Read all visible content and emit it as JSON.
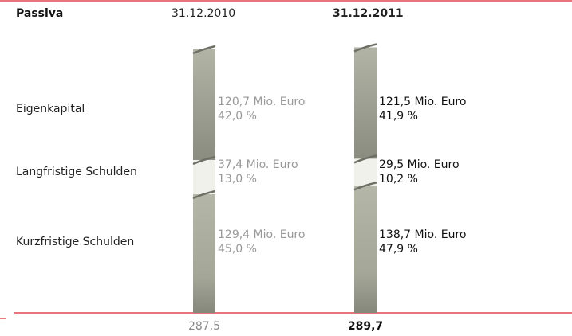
{
  "chart_data": {
    "type": "stacked_bar",
    "title": "Passiva",
    "categories": [
      "31.12.2010",
      "31.12.2011"
    ],
    "series": [
      {
        "name": "Eigenkapital",
        "color": "#9c9e90",
        "values": [
          120.7,
          121.5
        ],
        "value_labels": [
          "120,7 Mio. Euro",
          "121,5 Mio. Euro"
        ],
        "shares": [
          42.0,
          41.9
        ],
        "share_labels": [
          "42,0 %",
          "41,9 %"
        ]
      },
      {
        "name": "Langfristige Schulden",
        "color": "#f1f1ec",
        "values": [
          37.4,
          29.5
        ],
        "value_labels": [
          "37,4 Mio. Euro",
          "29,5 Mio. Euro"
        ],
        "shares": [
          13.0,
          10.2
        ],
        "share_labels": [
          "13,0 %",
          "10,2 %"
        ]
      },
      {
        "name": "Kurzfristige Schulden",
        "color": "#a4a698",
        "values": [
          129.4,
          138.7
        ],
        "value_labels": [
          "129,4 Mio. Euro",
          "138,7 Mio. Euro"
        ],
        "shares": [
          45.0,
          47.9
        ],
        "share_labels": [
          "45,0 %",
          "47,9 %"
        ]
      }
    ],
    "totals": [
      287.5,
      289.7
    ],
    "total_labels": [
      "287,5",
      "289,7"
    ]
  }
}
